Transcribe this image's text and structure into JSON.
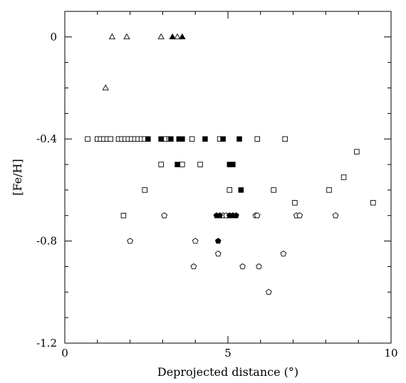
{
  "chart_data": {
    "type": "scatter",
    "xlabel": "Deprojected distance (°)",
    "ylabel": "[Fe/H]",
    "xlim": [
      0,
      10
    ],
    "ylim": [
      -1.2,
      0.1
    ],
    "xticks": [
      0,
      5,
      10
    ],
    "xtick_labels": [
      "0",
      "5",
      "10"
    ],
    "yticks": [
      0,
      -0.4,
      -0.8,
      -1.2
    ],
    "ytick_labels": [
      "0",
      "-0.4",
      "-0.8",
      "-1.2"
    ],
    "grid": false,
    "series": [
      {
        "marker": "triangle-open",
        "points": [
          [
            1.45,
            0.0
          ],
          [
            1.9,
            0.0
          ],
          [
            2.95,
            0.0
          ],
          [
            3.45,
            0.0
          ],
          [
            1.25,
            -0.2
          ]
        ]
      },
      {
        "marker": "triangle-filled",
        "points": [
          [
            3.3,
            0.0
          ],
          [
            3.6,
            0.0
          ]
        ]
      },
      {
        "marker": "square-open",
        "points": [
          [
            0.7,
            -0.4
          ],
          [
            1.0,
            -0.4
          ],
          [
            1.1,
            -0.4
          ],
          [
            1.2,
            -0.4
          ],
          [
            1.3,
            -0.4
          ],
          [
            1.4,
            -0.4
          ],
          [
            1.65,
            -0.4
          ],
          [
            1.75,
            -0.4
          ],
          [
            1.85,
            -0.4
          ],
          [
            1.95,
            -0.4
          ],
          [
            2.05,
            -0.4
          ],
          [
            2.15,
            -0.4
          ],
          [
            2.25,
            -0.4
          ],
          [
            2.35,
            -0.4
          ],
          [
            2.45,
            -0.4
          ],
          [
            2.55,
            -0.4
          ],
          [
            3.1,
            -0.4
          ],
          [
            3.2,
            -0.4
          ],
          [
            3.9,
            -0.4
          ],
          [
            4.75,
            -0.4
          ],
          [
            5.9,
            -0.4
          ],
          [
            6.75,
            -0.4
          ],
          [
            2.95,
            -0.5
          ],
          [
            3.6,
            -0.5
          ],
          [
            4.15,
            -0.5
          ],
          [
            2.45,
            -0.6
          ],
          [
            5.05,
            -0.6
          ],
          [
            6.4,
            -0.6
          ],
          [
            8.1,
            -0.6
          ],
          [
            1.8,
            -0.7
          ],
          [
            7.05,
            -0.65
          ],
          [
            8.55,
            -0.55
          ],
          [
            8.95,
            -0.45
          ],
          [
            9.45,
            -0.65
          ]
        ]
      },
      {
        "marker": "square-filled",
        "points": [
          [
            2.55,
            -0.4
          ],
          [
            2.95,
            -0.4
          ],
          [
            3.25,
            -0.4
          ],
          [
            3.5,
            -0.4
          ],
          [
            3.6,
            -0.4
          ],
          [
            4.3,
            -0.4
          ],
          [
            4.85,
            -0.4
          ],
          [
            5.35,
            -0.4
          ],
          [
            3.45,
            -0.5
          ],
          [
            5.05,
            -0.5
          ],
          [
            5.15,
            -0.5
          ],
          [
            5.4,
            -0.6
          ]
        ]
      },
      {
        "marker": "pentagon-open",
        "points": [
          [
            3.05,
            -0.7
          ],
          [
            4.85,
            -0.7
          ],
          [
            4.95,
            -0.7
          ],
          [
            5.85,
            -0.7
          ],
          [
            5.9,
            -0.7
          ],
          [
            7.1,
            -0.7
          ],
          [
            7.2,
            -0.7
          ],
          [
            8.3,
            -0.7
          ],
          [
            2.0,
            -0.8
          ],
          [
            4.0,
            -0.8
          ],
          [
            4.7,
            -0.85
          ],
          [
            6.7,
            -0.85
          ],
          [
            3.95,
            -0.9
          ],
          [
            5.45,
            -0.9
          ],
          [
            5.95,
            -0.9
          ],
          [
            6.25,
            -1.0
          ]
        ]
      },
      {
        "marker": "pentagon-filled",
        "points": [
          [
            4.65,
            -0.7
          ],
          [
            4.75,
            -0.7
          ],
          [
            5.05,
            -0.7
          ],
          [
            5.15,
            -0.7
          ],
          [
            5.25,
            -0.7
          ],
          [
            4.7,
            -0.8
          ]
        ]
      }
    ]
  }
}
